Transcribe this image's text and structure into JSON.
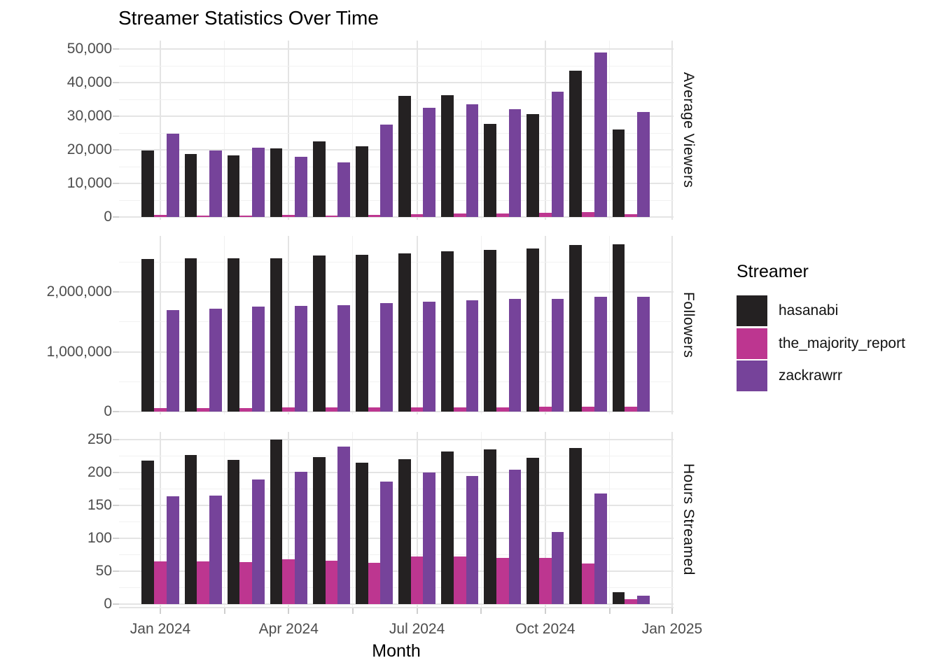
{
  "title": "Streamer Statistics Over Time",
  "x_axis": {
    "title": "Month",
    "tick_labels": [
      "Jan 2024",
      "Apr 2024",
      "Jul 2024",
      "Oct 2024",
      "Jan 2025"
    ]
  },
  "legend": {
    "title": "Streamer",
    "items": [
      {
        "label": "hasanabi",
        "color": "#242122"
      },
      {
        "label": "the_majority_report",
        "color": "#bd3690"
      },
      {
        "label": "zackrawrr",
        "color": "#76439a"
      }
    ]
  },
  "colors": {
    "background": "#ffffff",
    "grid_major": "#e4e4e4",
    "grid_minor": "#f1f1f1",
    "tick_text": "#4d4d4d",
    "bar_hasanabi": "#242122",
    "bar_the_majority_report": "#bd3690",
    "bar_zackrawrr": "#76439a"
  },
  "chart_data": {
    "type": "bar",
    "title": "Streamer Statistics Over Time",
    "xlabel": "Month",
    "grid": true,
    "legend_position": "right",
    "categories": [
      "Jan 2024",
      "Feb 2024",
      "Mar 2024",
      "Apr 2024",
      "May 2024",
      "Jun 2024",
      "Jul 2024",
      "Aug 2024",
      "Sep 2024",
      "Oct 2024",
      "Nov 2024",
      "Dec 2024"
    ],
    "x_tick_labels": [
      "Jan 2024",
      "Apr 2024",
      "Jul 2024",
      "Oct 2024",
      "Jan 2025"
    ],
    "facets": [
      {
        "label": "Average Viewers",
        "ylim": [
          0,
          52500
        ],
        "major_ticks": [
          0,
          10000,
          20000,
          30000,
          40000,
          50000
        ],
        "tick_labels": [
          "0",
          "10,000",
          "20,000",
          "30,000",
          "40,000",
          "50,000"
        ],
        "minor_ticks": [
          5000,
          15000,
          25000,
          35000,
          45000
        ],
        "series": [
          {
            "name": "hasanabi",
            "values": [
              19700,
              18800,
              18400,
              20500,
              22400,
              21000,
              36100,
              36200,
              27800,
              30600,
              43500,
              26000
            ]
          },
          {
            "name": "the_majority_report",
            "values": [
              600,
              500,
              500,
              550,
              500,
              650,
              900,
              1050,
              950,
              1200,
              1500,
              800
            ]
          },
          {
            "name": "zackrawrr",
            "values": [
              24800,
              19700,
              20600,
              18000,
              16200,
              27400,
              32500,
              33500,
              32000,
              37300,
              49000,
              31300
            ]
          }
        ]
      },
      {
        "label": "Followers",
        "ylim": [
          0,
          2940000
        ],
        "major_ticks": [
          0,
          1000000,
          2000000
        ],
        "tick_labels": [
          "0",
          "1,000,000",
          "2,000,000"
        ],
        "minor_ticks": [
          500000,
          1500000,
          2500000
        ],
        "series": [
          {
            "name": "hasanabi",
            "values": [
              2553000,
              2560000,
              2562000,
              2566000,
              2608000,
              2620000,
              2652000,
              2686000,
              2706000,
              2730000,
              2788000,
              2795000
            ]
          },
          {
            "name": "the_majority_report",
            "values": [
              62000,
              63000,
              64000,
              65000,
              66000,
              68000,
              70000,
              72000,
              74000,
              78000,
              82000,
              85000
            ]
          },
          {
            "name": "zackrawrr",
            "values": [
              1697000,
              1724000,
              1755000,
              1767000,
              1786000,
              1814000,
              1841000,
              1862000,
              1888000,
              1891000,
              1918000,
              1921000
            ]
          }
        ]
      },
      {
        "label": "Hours Streamed",
        "ylim": [
          0,
          262
        ],
        "major_ticks": [
          0,
          50,
          100,
          150,
          200,
          250
        ],
        "tick_labels": [
          "0",
          "50",
          "100",
          "150",
          "200",
          "250"
        ],
        "minor_ticks": [
          25,
          75,
          125,
          175,
          225
        ],
        "series": [
          {
            "name": "hasanabi",
            "values": [
              218,
              227,
              219,
              250,
              224,
              215,
              220,
              232,
              235,
              223,
              238,
              18
            ]
          },
          {
            "name": "the_majority_report",
            "values": [
              65,
              65,
              64,
              68,
              66,
              63,
              72,
              72,
              70,
              70,
              62,
              7
            ]
          },
          {
            "name": "zackrawrr",
            "values": [
              164,
              165,
              190,
              201,
              240,
              186,
              200,
              195,
              204,
              110,
              168,
              13
            ]
          }
        ]
      }
    ]
  }
}
